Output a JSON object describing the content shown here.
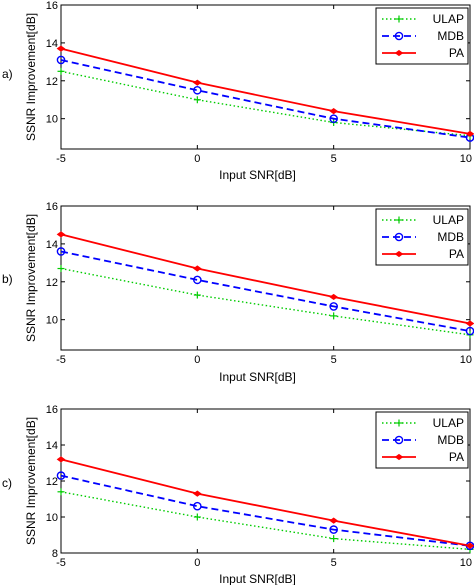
{
  "chart_data": [
    {
      "type": "line",
      "panel_label": "a)",
      "xlabel": "Input SNR[dB]",
      "ylabel": "SSNR Improvement[dB]",
      "x": [
        -5,
        0,
        5,
        10
      ],
      "xticks": [
        "-5",
        "0",
        "5",
        "10"
      ],
      "yticks": [
        "10",
        "12",
        "14",
        "16"
      ],
      "xlim": [
        -5,
        10
      ],
      "ylim": [
        8.4,
        16
      ],
      "legend_position": "top-right",
      "series": [
        {
          "name": "ULAP",
          "values": [
            12.5,
            11.0,
            9.8,
            9.1
          ],
          "color": "#00cc00",
          "style": "dotted",
          "marker": "plus"
        },
        {
          "name": "MDB",
          "values": [
            13.1,
            11.5,
            10.0,
            9.0
          ],
          "color": "#0000ff",
          "style": "dashed",
          "marker": "circle"
        },
        {
          "name": "PA",
          "values": [
            13.7,
            11.9,
            10.4,
            9.2
          ],
          "color": "#ff0000",
          "style": "solid",
          "marker": "star"
        }
      ]
    },
    {
      "type": "line",
      "panel_label": "b)",
      "xlabel": "Input SNR[dB]",
      "ylabel": "SSNR Improvement[dB]",
      "x": [
        -5,
        0,
        5,
        10
      ],
      "xticks": [
        "-5",
        "0",
        "5",
        "10"
      ],
      "yticks": [
        "10",
        "12",
        "14",
        "16"
      ],
      "xlim": [
        -5,
        10
      ],
      "ylim": [
        8.4,
        16
      ],
      "legend_position": "top-right",
      "series": [
        {
          "name": "ULAP",
          "values": [
            12.7,
            11.3,
            10.2,
            9.2
          ],
          "color": "#00cc00",
          "style": "dotted",
          "marker": "plus"
        },
        {
          "name": "MDB",
          "values": [
            13.6,
            12.1,
            10.7,
            9.4
          ],
          "color": "#0000ff",
          "style": "dashed",
          "marker": "circle"
        },
        {
          "name": "PA",
          "values": [
            14.5,
            12.7,
            11.2,
            9.8
          ],
          "color": "#ff0000",
          "style": "solid",
          "marker": "star"
        }
      ]
    },
    {
      "type": "line",
      "panel_label": "c)",
      "xlabel": "Input SNR[dB]",
      "ylabel": "SSNR Improvement[dB]",
      "x": [
        -5,
        0,
        5,
        10
      ],
      "xticks": [
        "-5",
        "0",
        "5",
        "10"
      ],
      "yticks": [
        "8",
        "10",
        "12",
        "14",
        "16"
      ],
      "xlim": [
        -5,
        10
      ],
      "ylim": [
        8,
        16
      ],
      "legend_position": "top-right",
      "series": [
        {
          "name": "ULAP",
          "values": [
            11.4,
            10.0,
            8.8,
            8.2
          ],
          "color": "#00cc00",
          "style": "dotted",
          "marker": "plus"
        },
        {
          "name": "MDB",
          "values": [
            12.3,
            10.6,
            9.3,
            8.4
          ],
          "color": "#0000ff",
          "style": "dashed",
          "marker": "circle"
        },
        {
          "name": "PA",
          "values": [
            13.2,
            11.3,
            9.8,
            8.4
          ],
          "color": "#ff0000",
          "style": "solid",
          "marker": "star"
        }
      ]
    }
  ]
}
